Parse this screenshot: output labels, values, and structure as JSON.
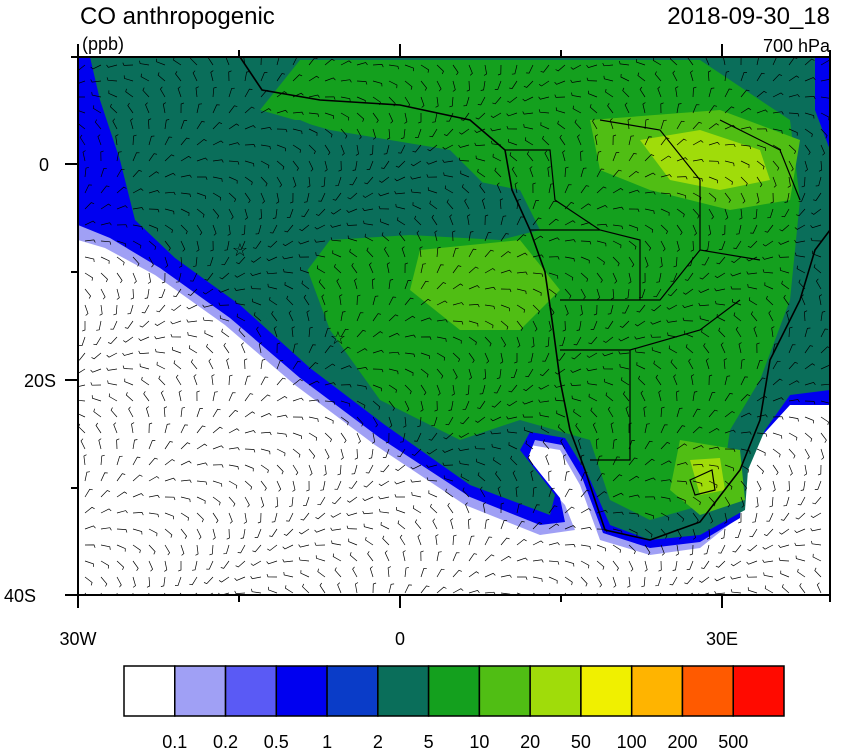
{
  "title": "CO anthropogenic",
  "units": "(ppb)",
  "date": "2018-09-30_18",
  "level": "700 hPa",
  "lat_labels": [
    "0",
    "20S",
    "40S"
  ],
  "lon_labels": [
    "30W",
    "0",
    "30E"
  ],
  "colorbar": {
    "colors": [
      "#ffffff",
      "#a0a0f5",
      "#5a5af5",
      "#0000f0",
      "#0a3cc8",
      "#0a6e5a",
      "#14a01e",
      "#50be14",
      "#a0dc0a",
      "#f0f000",
      "#ffb400",
      "#ff5a00",
      "#ff0a00"
    ],
    "labels": [
      "0.1",
      "0.2",
      "0.5",
      "1",
      "2",
      "5",
      "10",
      "20",
      "50",
      "100",
      "200",
      "500"
    ]
  }
}
